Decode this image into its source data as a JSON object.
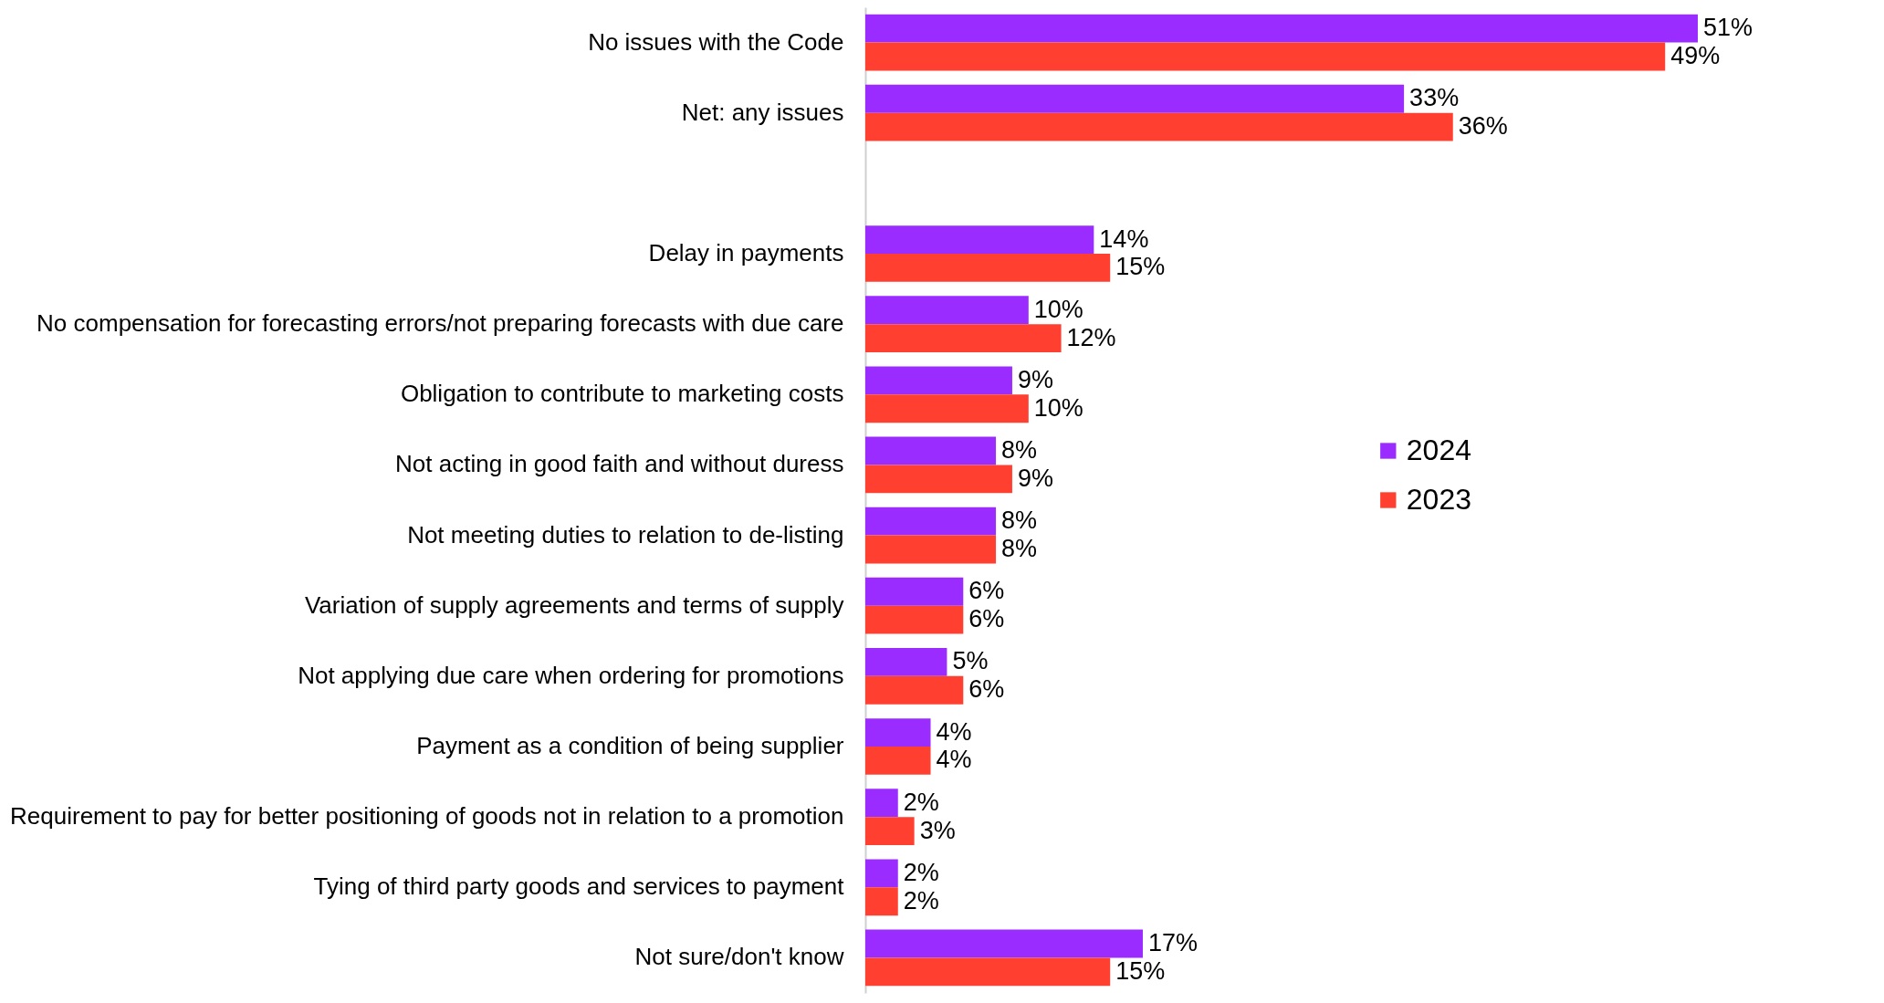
{
  "chart_data": {
    "type": "bar",
    "orientation": "horizontal",
    "legend": "right",
    "grid": false,
    "categories": [
      "No issues with the Code",
      "Net: any issues",
      null,
      "Delay in payments",
      "No compensation for forecasting errors/not preparing forecasts with due care",
      "Obligation to contribute to marketing costs",
      "Not acting in good faith and without duress",
      "Not meeting duties to relation to de-listing",
      "Variation of supply agreements and terms of supply",
      "Not applying due care when ordering for promotions",
      "Payment as a condition of being supplier",
      "Requirement to pay for better positioning of goods not in relation to a promotion",
      "Tying of third party goods and services to payment",
      "Not sure/don't know"
    ],
    "series": [
      {
        "name": "2024",
        "color": "#9b2cff",
        "values": [
          51,
          33,
          null,
          14,
          10,
          9,
          8,
          8,
          6,
          5,
          4,
          2,
          2,
          17
        ],
        "value_labels": [
          "51%",
          "33%",
          null,
          "14%",
          "10%",
          "9%",
          "8%",
          "8%",
          "6%",
          "5%",
          "4%",
          "2%",
          "2%",
          "17%"
        ]
      },
      {
        "name": "2023",
        "color": "#ff4030",
        "values": [
          49,
          36,
          null,
          15,
          12,
          10,
          9,
          8,
          6,
          6,
          4,
          3,
          2,
          15
        ],
        "value_labels": [
          "49%",
          "36%",
          null,
          "15%",
          "12%",
          "10%",
          "9%",
          "8%",
          "6%",
          "6%",
          "4%",
          "3%",
          "2%",
          "15%"
        ]
      }
    ]
  }
}
